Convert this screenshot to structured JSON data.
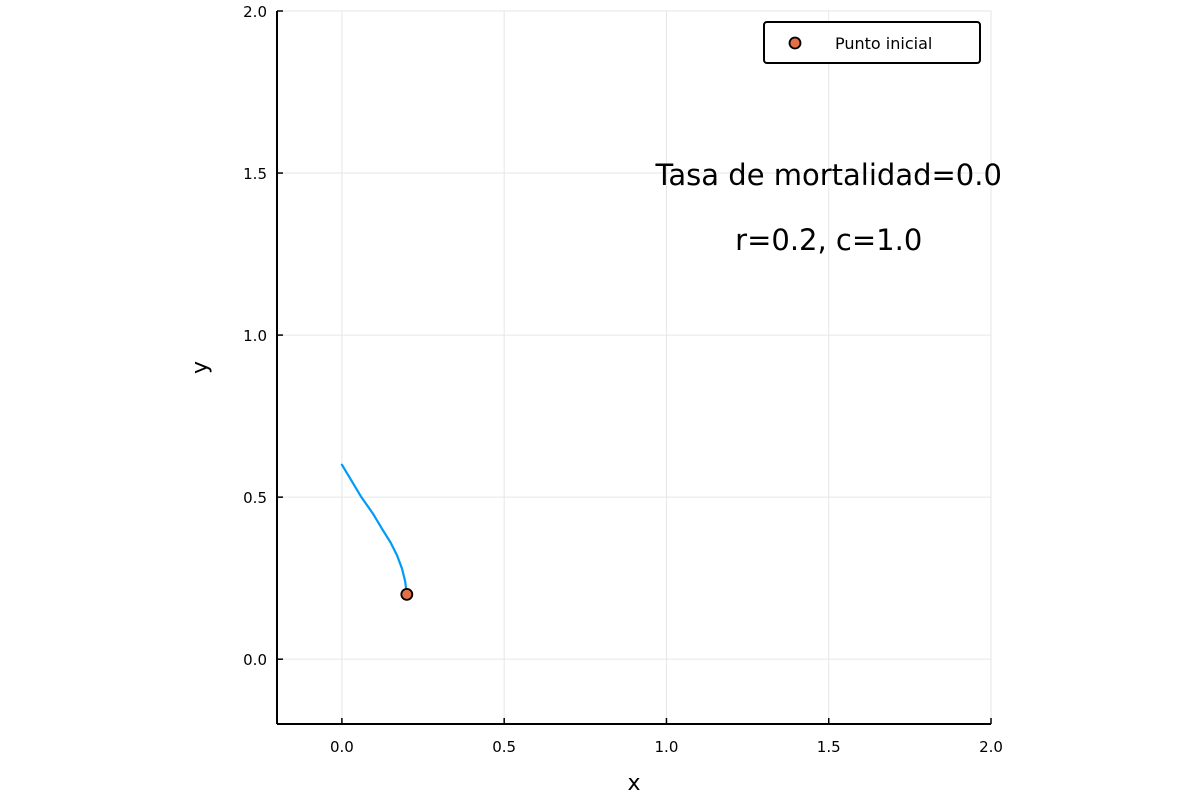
{
  "chart_data": {
    "type": "line",
    "xlabel": "x",
    "ylabel": "y",
    "xlim": [
      -0.2,
      2.0
    ],
    "ylim": [
      -0.2,
      2.0
    ],
    "x_ticks": [
      0.0,
      0.5,
      1.0,
      1.5,
      2.0
    ],
    "y_ticks": [
      0.0,
      0.5,
      1.0,
      1.5,
      2.0
    ],
    "x_tick_labels": [
      "0.0",
      "0.5",
      "1.0",
      "1.5",
      "2.0"
    ],
    "y_tick_labels": [
      "0.0",
      "0.5",
      "1.0",
      "1.5",
      "2.0"
    ],
    "grid": true,
    "legend_position": "top-right",
    "annotation": {
      "line1": "Tasa de mortalidad=0.0",
      "line2": "r=0.2, c=1.0",
      "x": 1.5,
      "y_line1": 1.5,
      "y_line2": 1.3
    },
    "series": [
      {
        "type": "line",
        "color": "#009af9",
        "x": [
          0.2,
          0.195,
          0.185,
          0.17,
          0.15,
          0.125,
          0.095,
          0.06,
          0.03,
          0.0
        ],
        "y": [
          0.2,
          0.24,
          0.28,
          0.32,
          0.36,
          0.4,
          0.45,
          0.5,
          0.55,
          0.6
        ]
      },
      {
        "type": "scatter",
        "name": "Punto inicial",
        "color": "#e26f46",
        "x": [
          0.2
        ],
        "y": [
          0.2
        ]
      }
    ]
  }
}
